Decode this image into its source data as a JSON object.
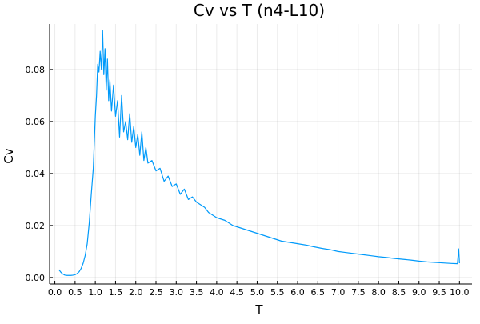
{
  "chart_data": {
    "type": "line",
    "title": "Cv vs T (n4-L10)",
    "xlabel": "T",
    "ylabel": "Cv",
    "xlim": [
      -0.13,
      10.31
    ],
    "ylim": [
      -0.0025,
      0.0975
    ],
    "x_ticks": [
      "0.0",
      "0.5",
      "1.0",
      "1.5",
      "2.0",
      "2.5",
      "3.0",
      "3.5",
      "4.0",
      "4.5",
      "5.0",
      "5.5",
      "6.0",
      "6.5",
      "7.0",
      "7.5",
      "8.0",
      "8.5",
      "9.0",
      "9.5",
      "10.0"
    ],
    "y_ticks": [
      "0.00",
      "0.02",
      "0.04",
      "0.06",
      "0.08"
    ],
    "grid": true,
    "legend": "none",
    "series": [
      {
        "color": "#009AFA",
        "x": [
          0.1,
          0.15,
          0.2,
          0.25,
          0.3,
          0.35,
          0.4,
          0.45,
          0.5,
          0.55,
          0.6,
          0.65,
          0.7,
          0.75,
          0.8,
          0.85,
          0.9,
          0.95,
          1.0,
          1.03,
          1.06,
          1.09,
          1.12,
          1.15,
          1.18,
          1.21,
          1.24,
          1.27,
          1.3,
          1.33,
          1.36,
          1.4,
          1.45,
          1.5,
          1.55,
          1.6,
          1.65,
          1.7,
          1.75,
          1.8,
          1.85,
          1.9,
          1.95,
          2.0,
          2.05,
          2.1,
          2.15,
          2.2,
          2.25,
          2.3,
          2.4,
          2.5,
          2.6,
          2.7,
          2.8,
          2.9,
          3.0,
          3.1,
          3.2,
          3.3,
          3.4,
          3.5,
          3.6,
          3.7,
          3.8,
          3.9,
          4.0,
          4.2,
          4.4,
          4.6,
          4.8,
          5.0,
          5.2,
          5.4,
          5.6,
          5.8,
          6.0,
          6.2,
          6.4,
          6.6,
          6.8,
          7.0,
          7.2,
          7.4,
          7.6,
          7.8,
          8.0,
          8.2,
          8.4,
          8.6,
          8.8,
          9.0,
          9.2,
          9.4,
          9.6,
          9.8,
          9.95,
          9.98,
          10.0
        ],
        "y": [
          0.003,
          0.002,
          0.0013,
          0.0009,
          0.0008,
          0.0008,
          0.0008,
          0.0009,
          0.0011,
          0.0015,
          0.0022,
          0.0035,
          0.0055,
          0.0085,
          0.013,
          0.021,
          0.032,
          0.042,
          0.062,
          0.07,
          0.082,
          0.079,
          0.087,
          0.08,
          0.095,
          0.078,
          0.088,
          0.072,
          0.084,
          0.068,
          0.076,
          0.064,
          0.074,
          0.062,
          0.068,
          0.054,
          0.07,
          0.056,
          0.06,
          0.053,
          0.063,
          0.052,
          0.058,
          0.05,
          0.055,
          0.047,
          0.056,
          0.045,
          0.05,
          0.044,
          0.045,
          0.041,
          0.042,
          0.037,
          0.039,
          0.035,
          0.036,
          0.032,
          0.034,
          0.03,
          0.031,
          0.029,
          0.028,
          0.027,
          0.025,
          0.024,
          0.023,
          0.022,
          0.02,
          0.019,
          0.018,
          0.017,
          0.016,
          0.015,
          0.014,
          0.0135,
          0.013,
          0.0125,
          0.0118,
          0.0112,
          0.0107,
          0.01,
          0.0096,
          0.0092,
          0.0088,
          0.0084,
          0.008,
          0.0077,
          0.0073,
          0.007,
          0.0067,
          0.0063,
          0.006,
          0.0058,
          0.0056,
          0.0054,
          0.0053,
          0.011,
          0.0055
        ]
      }
    ]
  }
}
